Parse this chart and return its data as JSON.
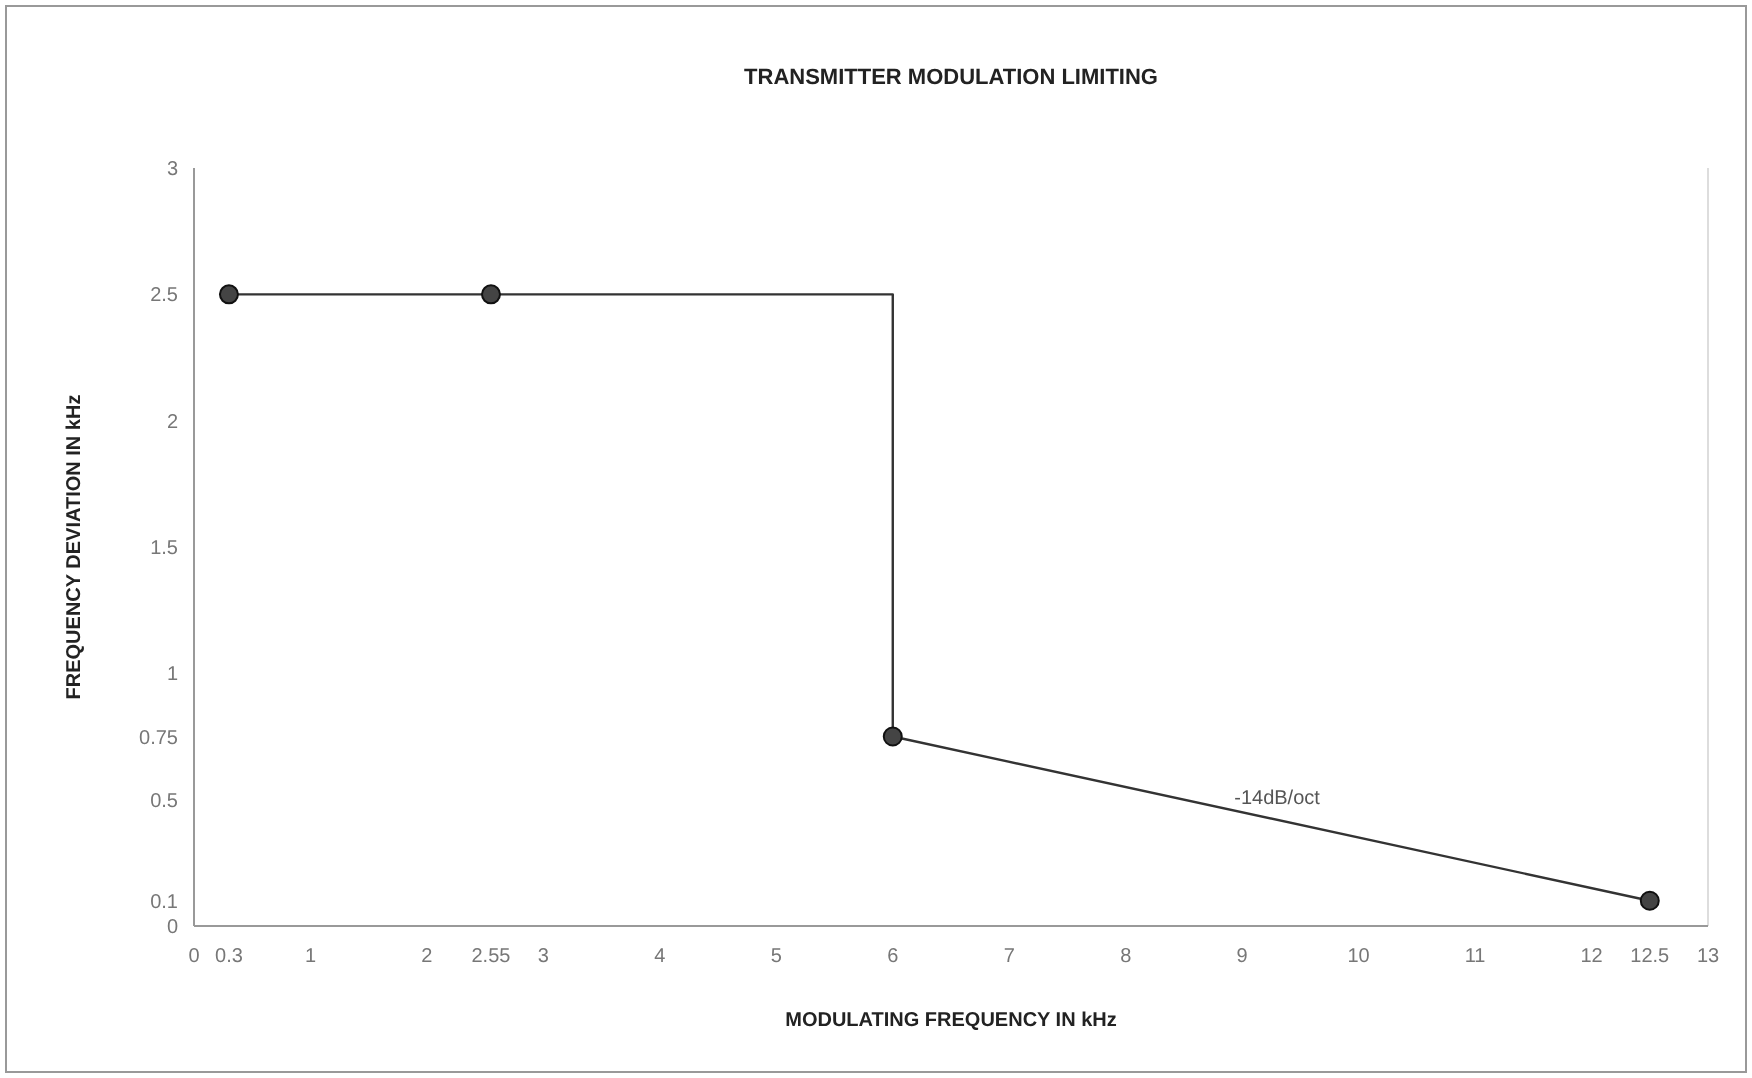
{
  "chart_data": {
    "type": "line",
    "title": "TRANSMITTER MODULATION LIMITING",
    "xlabel": "MODULATING FREQUENCY IN kHz",
    "ylabel": "FREQUENCY DEVIATION IN kHz",
    "xlim": [
      0,
      13
    ],
    "ylim": [
      0,
      3
    ],
    "xticks": [
      {
        "value": 0,
        "label": "0"
      },
      0.3,
      1,
      2,
      2.55,
      3,
      4,
      5,
      6,
      7,
      8,
      9,
      10,
      11,
      12,
      12.5,
      13
    ],
    "yticks": [
      0,
      0.1,
      0.5,
      0.75,
      1,
      1.5,
      2,
      2.5,
      3
    ],
    "series": [
      {
        "color": "#333333",
        "marker": "none",
        "x": [
          0.3,
          2.55,
          6,
          6,
          12.5
        ],
        "values": [
          2.5,
          2.5,
          2.5,
          0.75,
          0.1
        ]
      },
      {
        "type": "scatter",
        "color": "#444444",
        "marker": "circle",
        "x": [
          0.3,
          2.55,
          6,
          12.5
        ],
        "values": [
          2.5,
          2.5,
          0.75,
          0.1
        ]
      }
    ],
    "annotations": [
      {
        "text": "-14dB/oct",
        "x": 9.3,
        "y": 0.42
      }
    ],
    "grid": false
  }
}
